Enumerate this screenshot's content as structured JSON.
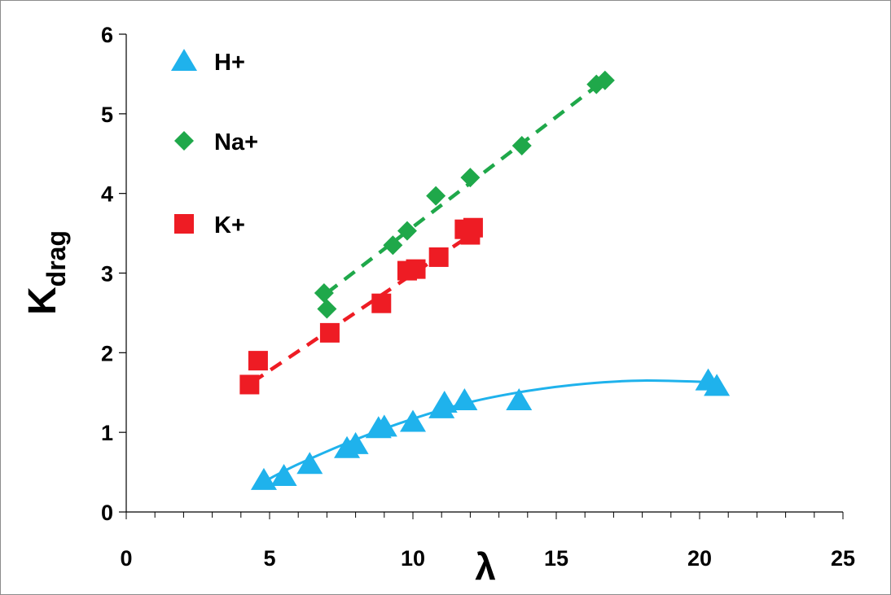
{
  "chart_data": {
    "type": "scatter",
    "xlabel": "λ",
    "ylabel": {
      "main": "K",
      "sub": "drag"
    },
    "xlim": [
      0,
      25
    ],
    "ylim": [
      0,
      6
    ],
    "x_ticks": [
      "0",
      "5",
      "10",
      "15",
      "20",
      "25"
    ],
    "y_ticks": [
      "0",
      "1",
      "2",
      "3",
      "4",
      "5",
      "6"
    ],
    "grid": false,
    "legend_position": "top-left",
    "series": [
      {
        "name": "H+",
        "marker": "triangle",
        "color": "#1fb2ec",
        "fit": "polynomial",
        "fit_style": "solid",
        "x": [
          4.8,
          5.5,
          6.4,
          7.7,
          8.0,
          8.8,
          9.0,
          10.0,
          11.0,
          11.1,
          11.8,
          13.7,
          20.3,
          20.6
        ],
        "y": [
          0.4,
          0.45,
          0.6,
          0.8,
          0.85,
          1.05,
          1.07,
          1.13,
          1.3,
          1.37,
          1.4,
          1.4,
          1.65,
          1.58
        ],
        "fit_curve": {
          "x": [
            4.8,
            6,
            8,
            10,
            12,
            14,
            16,
            18,
            20.5
          ],
          "y": [
            0.38,
            0.6,
            0.91,
            1.17,
            1.38,
            1.52,
            1.61,
            1.65,
            1.63
          ]
        }
      },
      {
        "name": "Na+",
        "marker": "diamond",
        "color": "#1fa84a",
        "fit": "linear",
        "fit_style": "dashed",
        "x": [
          6.9,
          7.0,
          9.3,
          9.8,
          10.8,
          12.0,
          13.8,
          16.4,
          16.7
        ],
        "y": [
          2.75,
          2.55,
          3.35,
          3.53,
          3.97,
          4.2,
          4.6,
          5.37,
          5.42
        ],
        "fit_curve": {
          "x": [
            7.0,
            16.7
          ],
          "y": [
            2.75,
            5.43
          ]
        }
      },
      {
        "name": "K+",
        "marker": "square",
        "color": "#ee1c24",
        "fit": "linear",
        "fit_style": "dashed",
        "x": [
          4.3,
          4.6,
          7.1,
          8.9,
          9.8,
          10.1,
          10.9,
          11.8,
          12.0,
          12.1
        ],
        "y": [
          1.6,
          1.9,
          2.25,
          2.62,
          3.03,
          3.05,
          3.2,
          3.55,
          3.48,
          3.57
        ],
        "fit_curve": {
          "x": [
            4.4,
            12.1
          ],
          "y": [
            1.63,
            3.5
          ]
        }
      }
    ]
  }
}
